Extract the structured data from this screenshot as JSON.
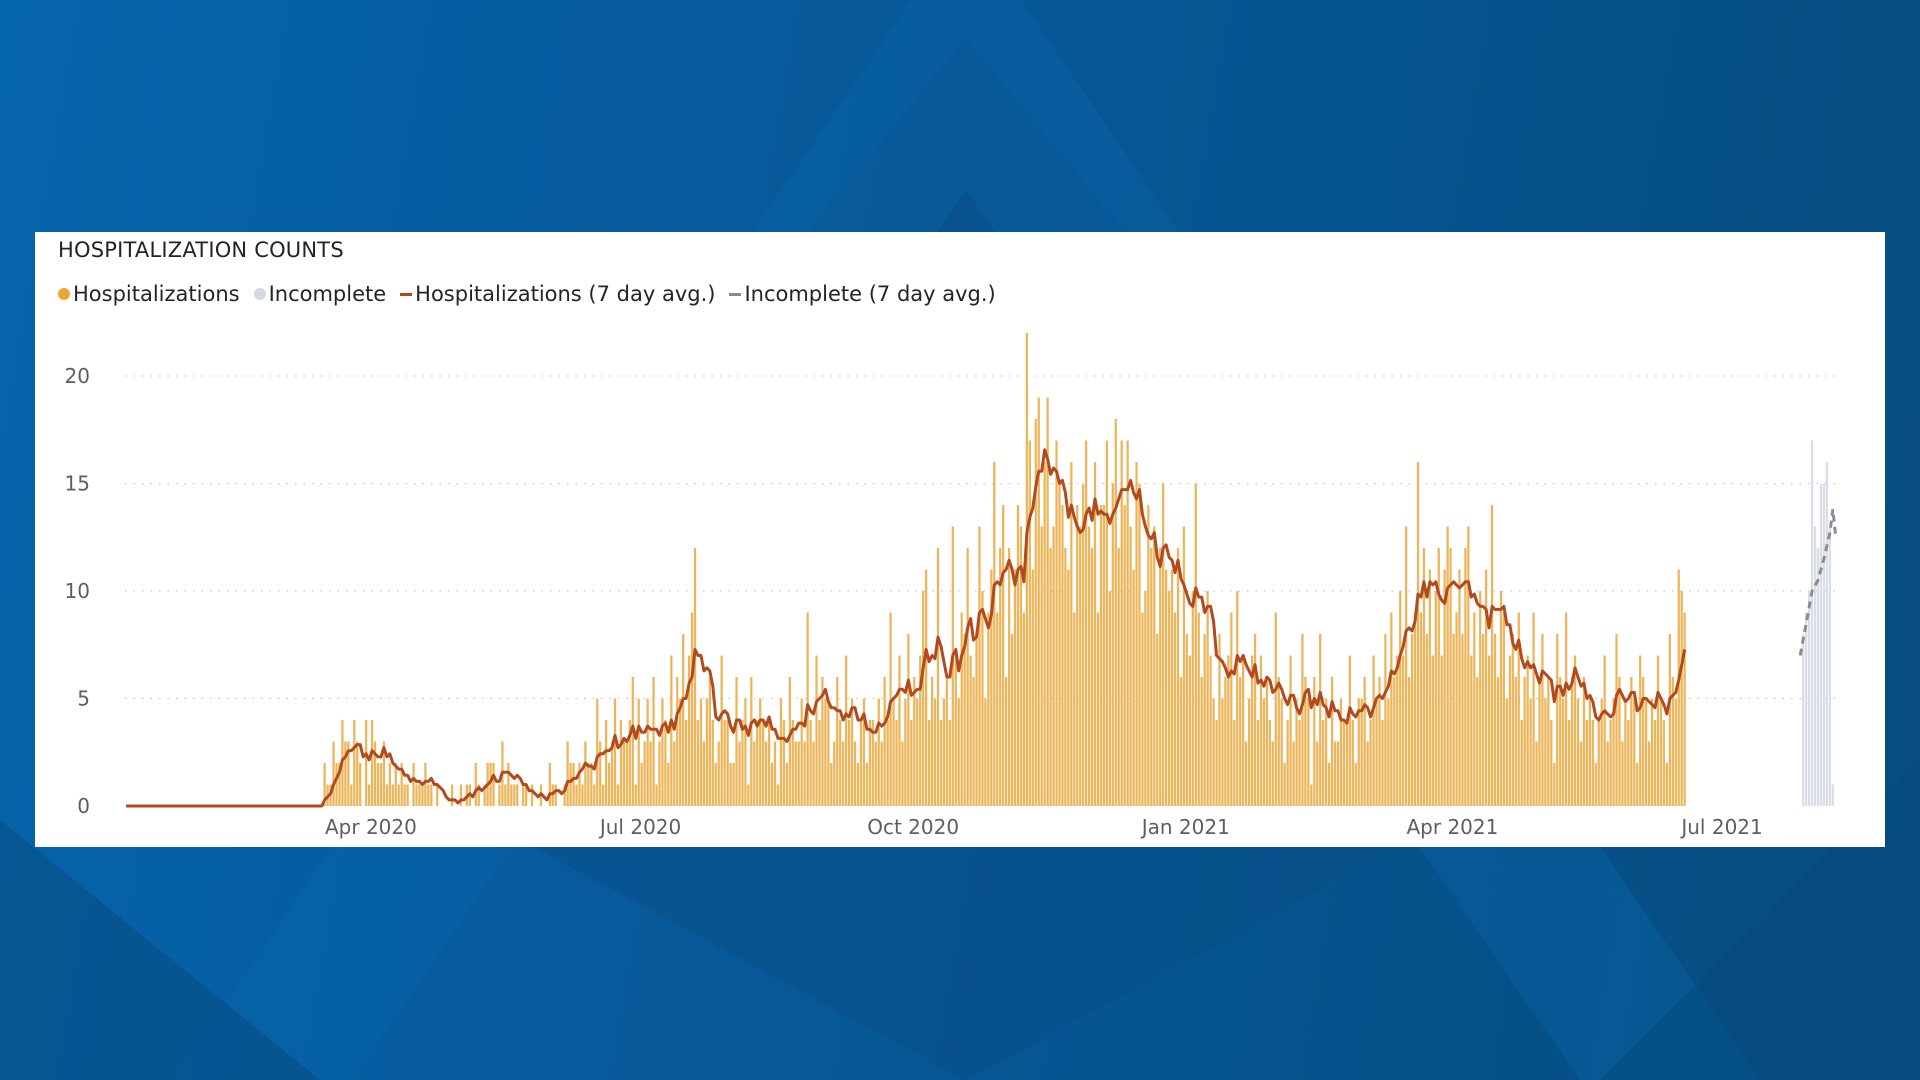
{
  "panel": {
    "title": "HOSPITALIZATION COUNTS"
  },
  "legend": [
    {
      "label": "Hospitalizations",
      "marker": "dot",
      "color": "#e8a838"
    },
    {
      "label": "Incomplete",
      "marker": "dot",
      "color": "#d4d8e0"
    },
    {
      "label": "Hospitalizations (7 day avg.)",
      "marker": "line",
      "color": "#b5461c"
    },
    {
      "label": "Incomplete (7 day avg.)",
      "marker": "line",
      "color": "#8a8a8a"
    }
  ],
  "colors": {
    "bar": "#ecb55a",
    "bar_incomplete": "#d9dde6",
    "avg_line": "#b24a1e",
    "avg_incomplete_line": "#8c8c8c",
    "grid": "#c8c6c4",
    "axis_text": "#605e5c"
  },
  "chart_data": {
    "type": "bar",
    "title": "HOSPITALIZATION COUNTS",
    "xlabel": "",
    "ylabel": "",
    "ylim": [
      0,
      22
    ],
    "y_ticks": [
      0,
      5,
      10,
      15,
      20
    ],
    "x_tick_labels": [
      "Apr 2020",
      "Jul 2020",
      "Oct 2020",
      "Jan 2021",
      "Apr 2021",
      "Jul 2021"
    ],
    "x_tick_day_index": [
      83,
      174,
      266,
      358,
      448,
      539
    ],
    "start_date": "2020-01-09",
    "grid": true,
    "legend_position": "top-left",
    "series": [
      {
        "name": "Hospitalizations",
        "type": "bar",
        "start_index": 0,
        "values": [
          0,
          0,
          0,
          0,
          0,
          0,
          0,
          0,
          0,
          0,
          0,
          0,
          0,
          0,
          0,
          0,
          0,
          0,
          0,
          0,
          0,
          0,
          0,
          0,
          0,
          0,
          0,
          0,
          0,
          0,
          0,
          0,
          0,
          0,
          0,
          0,
          0,
          0,
          0,
          0,
          0,
          0,
          0,
          0,
          0,
          0,
          0,
          0,
          0,
          0,
          0,
          0,
          0,
          0,
          0,
          0,
          0,
          0,
          0,
          0,
          0,
          0,
          0,
          0,
          0,
          0,
          0,
          2,
          1,
          1,
          3,
          2,
          2,
          4,
          3,
          3,
          1,
          4,
          3,
          2,
          0,
          4,
          1,
          4,
          3,
          2,
          2,
          3,
          1,
          2,
          1,
          2,
          1,
          2,
          1,
          1,
          0,
          2,
          1,
          1,
          1,
          2,
          1,
          1,
          0,
          1,
          0,
          0,
          0,
          0,
          1,
          0,
          0,
          1,
          0,
          1,
          1,
          0,
          2,
          1,
          0,
          1,
          2,
          2,
          2,
          0,
          1,
          3,
          1,
          2,
          1,
          1,
          1,
          0,
          1,
          1,
          0,
          1,
          0,
          0,
          1,
          0,
          0,
          2,
          1,
          1,
          0,
          0,
          1,
          3,
          2,
          2,
          1,
          2,
          1,
          3,
          2,
          2,
          1,
          5,
          3,
          1,
          4,
          2,
          3,
          5,
          1,
          4,
          3,
          3,
          4,
          6,
          1,
          5,
          2,
          3,
          5,
          3,
          6,
          1,
          3,
          5,
          4,
          2,
          7,
          3,
          6,
          5,
          8,
          4,
          7,
          9,
          12,
          4,
          5,
          3,
          5,
          6,
          4,
          2,
          3,
          7,
          4,
          4,
          2,
          2,
          6,
          3,
          4,
          5,
          1,
          6,
          3,
          4,
          5,
          4,
          3,
          4,
          2,
          3,
          1,
          5,
          4,
          2,
          6,
          4,
          3,
          3,
          5,
          3,
          9,
          4,
          3,
          7,
          4,
          6,
          5,
          5,
          2,
          3,
          6,
          4,
          3,
          7,
          4,
          5,
          3,
          2,
          4,
          5,
          2,
          4,
          4,
          3,
          5,
          3,
          6,
          4,
          9,
          5,
          4,
          7,
          3,
          5,
          8,
          4,
          6,
          5,
          7,
          10,
          11,
          4,
          6,
          5,
          12,
          4,
          5,
          6,
          4,
          13,
          7,
          5,
          9,
          8,
          12,
          7,
          6,
          8,
          13,
          10,
          5,
          9,
          11,
          16,
          9,
          12,
          14,
          6,
          12,
          8,
          11,
          14,
          13,
          9,
          22,
          17,
          11,
          18,
          19,
          13,
          16,
          19,
          12,
          13,
          17,
          15,
          14,
          12,
          11,
          16,
          9,
          14,
          13,
          15,
          17,
          13,
          12,
          16,
          9,
          14,
          14,
          17,
          10,
          15,
          18,
          12,
          17,
          14,
          17,
          13,
          11,
          16,
          15,
          9,
          10,
          14,
          12,
          13,
          8,
          12,
          15,
          11,
          10,
          11,
          9,
          12,
          6,
          13,
          8,
          7,
          10,
          15,
          9,
          6,
          8,
          10,
          7,
          5,
          4,
          8,
          5,
          6,
          7,
          9,
          4,
          10,
          6,
          7,
          3,
          5,
          7,
          8,
          4,
          7,
          5,
          6,
          4,
          3,
          9,
          6,
          5,
          2,
          4,
          7,
          3,
          5,
          4,
          8,
          6,
          5,
          1,
          6,
          3,
          8,
          4,
          5,
          2,
          6,
          3,
          3,
          5,
          4,
          4,
          7,
          4,
          2,
          5,
          5,
          6,
          3,
          4,
          7,
          5,
          6,
          4,
          8,
          5,
          9,
          6,
          7,
          10,
          7,
          13,
          6,
          8,
          9,
          16,
          9,
          12,
          8,
          11,
          7,
          10,
          12,
          7,
          11,
          13,
          12,
          8,
          9,
          11,
          8,
          12,
          13,
          7,
          9,
          6,
          10,
          8,
          11,
          7,
          14,
          8,
          6,
          10,
          9,
          5,
          7,
          8,
          6,
          9,
          4,
          6,
          7,
          5,
          9,
          3,
          6,
          8,
          5,
          6,
          4,
          2,
          8,
          6,
          5,
          9,
          4,
          6,
          7,
          5,
          3,
          6,
          4,
          5,
          4,
          2,
          4,
          5,
          7,
          3,
          4,
          5,
          8,
          6,
          3,
          5,
          4,
          6,
          5,
          2,
          7,
          6,
          5,
          3,
          5,
          4,
          7,
          5,
          4,
          2,
          8,
          6,
          5,
          11,
          10,
          9
        ]
      },
      {
        "name": "Incomplete",
        "type": "bar",
        "start_index": 566,
        "values": [
          8,
          9,
          10,
          17,
          13,
          12,
          15,
          15,
          16,
          13,
          1
        ]
      },
      {
        "name": "Hospitalizations (7 day avg.)",
        "type": "line",
        "method": "trailing 7-day mean of Hospitalizations",
        "range_end_value": 6.9
      },
      {
        "name": "Incomplete (7 day avg.)",
        "type": "line",
        "style": "dashed",
        "points": [
          [
            565,
            7
          ],
          [
            567,
            8.5
          ],
          [
            569,
            10
          ],
          [
            571,
            10.5
          ],
          [
            573,
            11.5
          ],
          [
            575,
            12.7
          ],
          [
            576,
            13.8
          ],
          [
            577,
            12.5
          ]
        ]
      }
    ]
  }
}
